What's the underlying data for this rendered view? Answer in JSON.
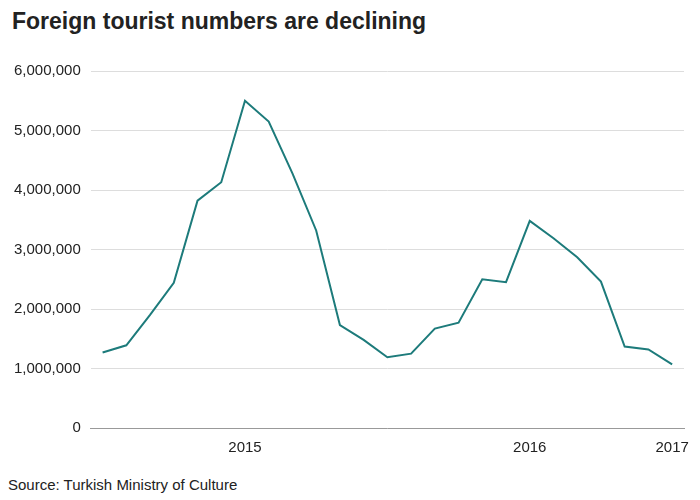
{
  "chart_data": {
    "type": "line",
    "title": "Foreign tourist numbers are declining",
    "source": "Source: Turkish Ministry of Culture",
    "categories": [
      null,
      null,
      null,
      null,
      null,
      null,
      "2015",
      null,
      null,
      null,
      null,
      null,
      null,
      null,
      null,
      null,
      null,
      null,
      "2016",
      null,
      null,
      null,
      null,
      null,
      "2017"
    ],
    "values": [
      1270000,
      1390000,
      1900000,
      2440000,
      3820000,
      4130000,
      5500000,
      5150000,
      4280000,
      3320000,
      1730000,
      1480000,
      1190000,
      1250000,
      1670000,
      1770000,
      2500000,
      2450000,
      3480000,
      3190000,
      2870000,
      2460000,
      1370000,
      1320000,
      1070000
    ],
    "color": "#1d7b7b",
    "ylim": [
      0,
      6000000
    ],
    "yticks": [
      0,
      {
        "value": 1000000,
        "label": "1,000,000"
      },
      {
        "value": 2000000,
        "label": "2,000,000"
      },
      {
        "value": 3000000,
        "label": "3,000,000"
      },
      {
        "value": 4000000,
        "label": "4,000,000"
      },
      {
        "value": 5000000,
        "label": "5,000,000"
      },
      {
        "value": 6000000,
        "label": "6,000,000"
      }
    ],
    "grid": true
  }
}
